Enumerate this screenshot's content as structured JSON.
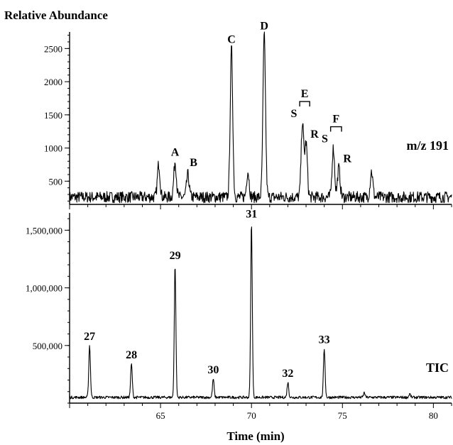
{
  "y_axis_title": "Relative Abundance",
  "x_axis_title": "Time (min)",
  "chart_data": [
    {
      "type": "line",
      "trace_label": "m/z 191",
      "ylim": [
        150,
        2750
      ],
      "xlim": [
        60,
        81
      ],
      "y_ticks": [
        500,
        1000,
        1500,
        2000,
        2500
      ],
      "y_tick_labels": [
        "500",
        "1000",
        "1500",
        "2000",
        "2500"
      ],
      "baseline": 260,
      "peaks": [
        {
          "x": 64.9,
          "y": 760
        },
        {
          "x": 65.8,
          "y": 800,
          "label": "A"
        },
        {
          "x": 66.5,
          "y": 600,
          "label": "B"
        },
        {
          "x": 68.9,
          "y": 2500,
          "label": "C"
        },
        {
          "x": 69.8,
          "y": 650
        },
        {
          "x": 70.7,
          "y": 2700,
          "label": "D"
        },
        {
          "x": 72.8,
          "y": 1380,
          "label": "S"
        },
        {
          "x": 73.0,
          "y": 1070,
          "label": "R"
        },
        {
          "x": 74.5,
          "y": 1000,
          "label": "S"
        },
        {
          "x": 74.8,
          "y": 700,
          "label": "R"
        },
        {
          "x": 76.6,
          "y": 650
        }
      ],
      "brackets": [
        {
          "label": "E",
          "x_from": 72.65,
          "x_to": 73.2
        },
        {
          "label": "F",
          "x_from": 74.35,
          "x_to": 74.95
        }
      ]
    },
    {
      "type": "line",
      "trace_label": "TIC",
      "ylim": [
        0,
        1650000
      ],
      "xlim": [
        60,
        81
      ],
      "x_ticks": [
        65,
        70,
        75,
        80
      ],
      "x_tick_labels": [
        "65",
        "70",
        "75",
        "80"
      ],
      "y_ticks": [
        500000,
        1000000,
        1500000
      ],
      "y_tick_labels": [
        "500,000",
        "1,000,000",
        "1,500,000"
      ],
      "baseline": 50000,
      "peaks": [
        {
          "x": 61.1,
          "y": 500000,
          "label": "27"
        },
        {
          "x": 63.4,
          "y": 340000,
          "label": "28"
        },
        {
          "x": 65.8,
          "y": 1200000,
          "label": "29"
        },
        {
          "x": 67.9,
          "y": 210000,
          "label": "30"
        },
        {
          "x": 70.0,
          "y": 1560000,
          "label": "31"
        },
        {
          "x": 72.0,
          "y": 180000,
          "label": "32"
        },
        {
          "x": 74.0,
          "y": 470000,
          "label": "33"
        },
        {
          "x": 76.2,
          "y": 90000
        },
        {
          "x": 78.7,
          "y": 80000
        }
      ]
    }
  ]
}
